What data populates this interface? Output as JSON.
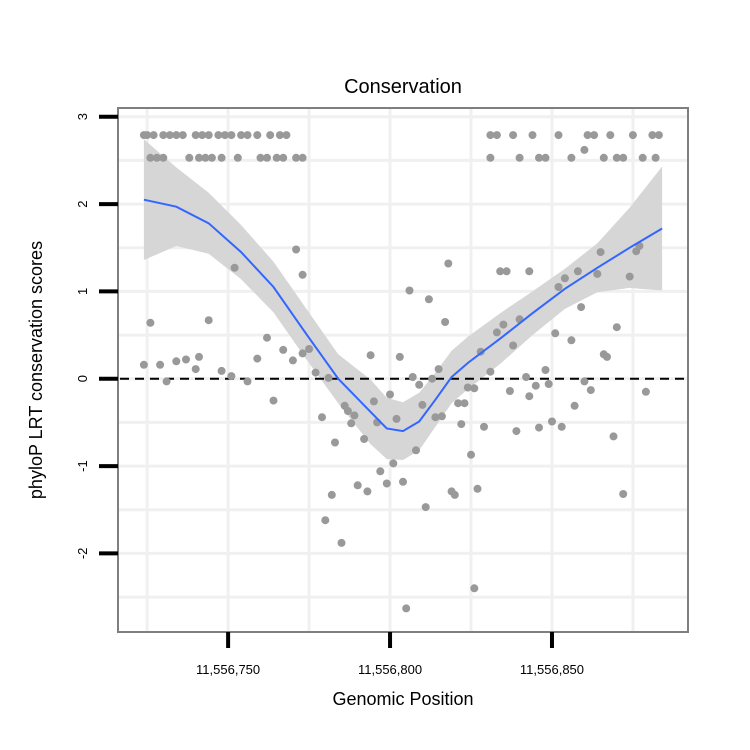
{
  "chart_data": {
    "type": "scatter",
    "title": "Conservation",
    "xlabel": "Genomic Position",
    "ylabel": "phyloP LRT conservation scores",
    "xlim": [
      11556716,
      11556892
    ],
    "ylim": [
      -2.9,
      3.1
    ],
    "x_ticks": [
      {
        "value": 11556750,
        "label": "11,556,750"
      },
      {
        "value": 11556800,
        "label": "11,556,800"
      },
      {
        "value": 11556850,
        "label": "11,556,850"
      }
    ],
    "y_ticks": [
      {
        "value": -2,
        "label": "-2"
      },
      {
        "value": -1,
        "label": "-1"
      },
      {
        "value": 0,
        "label": "0"
      },
      {
        "value": 1,
        "label": "1"
      },
      {
        "value": 2,
        "label": "2"
      },
      {
        "value": 3,
        "label": "3"
      }
    ],
    "reference_line": {
      "y": 0,
      "style": "dashed",
      "color": "#000000"
    },
    "colors": {
      "points": "#999999",
      "smooth": "#3366ff",
      "ribbon": "#d6d6d6",
      "panel_border": "#7f7f7f",
      "grid": "#f0f0f0"
    },
    "points": [
      [
        11556724,
        2.79
      ],
      [
        11556725,
        2.79
      ],
      [
        11556727,
        2.79
      ],
      [
        11556730,
        2.79
      ],
      [
        11556732,
        2.79
      ],
      [
        11556734,
        2.79
      ],
      [
        11556736,
        2.79
      ],
      [
        11556740,
        2.79
      ],
      [
        11556742,
        2.79
      ],
      [
        11556744,
        2.79
      ],
      [
        11556747,
        2.79
      ],
      [
        11556749,
        2.79
      ],
      [
        11556751,
        2.79
      ],
      [
        11556754,
        2.79
      ],
      [
        11556756,
        2.79
      ],
      [
        11556759,
        2.79
      ],
      [
        11556763,
        2.79
      ],
      [
        11556766,
        2.79
      ],
      [
        11556768,
        2.79
      ],
      [
        11556831,
        2.79
      ],
      [
        11556833,
        2.79
      ],
      [
        11556838,
        2.79
      ],
      [
        11556844,
        2.79
      ],
      [
        11556852,
        2.79
      ],
      [
        11556861,
        2.79
      ],
      [
        11556863,
        2.79
      ],
      [
        11556868,
        2.79
      ],
      [
        11556875,
        2.79
      ],
      [
        11556881,
        2.79
      ],
      [
        11556883,
        2.79
      ],
      [
        11556726,
        2.53
      ],
      [
        11556728,
        2.53
      ],
      [
        11556730,
        2.53
      ],
      [
        11556738,
        2.53
      ],
      [
        11556741,
        2.53
      ],
      [
        11556743,
        2.53
      ],
      [
        11556745,
        2.53
      ],
      [
        11556748,
        2.53
      ],
      [
        11556753,
        2.53
      ],
      [
        11556760,
        2.53
      ],
      [
        11556762,
        2.53
      ],
      [
        11556765,
        2.53
      ],
      [
        11556767,
        2.53
      ],
      [
        11556771,
        2.53
      ],
      [
        11556773,
        2.53
      ],
      [
        11556831,
        2.53
      ],
      [
        11556840,
        2.53
      ],
      [
        11556846,
        2.53
      ],
      [
        11556848,
        2.53
      ],
      [
        11556856,
        2.53
      ],
      [
        11556866,
        2.53
      ],
      [
        11556870,
        2.53
      ],
      [
        11556872,
        2.53
      ],
      [
        11556878,
        2.53
      ],
      [
        11556882,
        2.53
      ],
      [
        11556860,
        2.62
      ],
      [
        11556724,
        0.16
      ],
      [
        11556726,
        0.64
      ],
      [
        11556729,
        0.16
      ],
      [
        11556731,
        -0.03
      ],
      [
        11556734,
        0.2
      ],
      [
        11556737,
        0.22
      ],
      [
        11556740,
        0.11
      ],
      [
        11556741,
        0.25
      ],
      [
        11556744,
        0.67
      ],
      [
        11556748,
        0.09
      ],
      [
        11556751,
        0.03
      ],
      [
        11556752,
        1.27
      ],
      [
        11556756,
        -0.03
      ],
      [
        11556759,
        0.23
      ],
      [
        11556762,
        0.47
      ],
      [
        11556764,
        -0.25
      ],
      [
        11556767,
        0.33
      ],
      [
        11556770,
        0.21
      ],
      [
        11556771,
        1.48
      ],
      [
        11556773,
        0.29
      ],
      [
        11556773,
        1.19
      ],
      [
        11556775,
        0.34
      ],
      [
        11556777,
        0.07
      ],
      [
        11556779,
        -0.44
      ],
      [
        11556780,
        -1.62
      ],
      [
        11556781,
        0.01
      ],
      [
        11556782,
        -1.33
      ],
      [
        11556783,
        -0.73
      ],
      [
        11556785,
        -1.88
      ],
      [
        11556786,
        -0.31
      ],
      [
        11556787,
        -0.37
      ],
      [
        11556788,
        -0.51
      ],
      [
        11556789,
        -0.42
      ],
      [
        11556790,
        -1.22
      ],
      [
        11556792,
        -0.69
      ],
      [
        11556793,
        -1.29
      ],
      [
        11556794,
        0.27
      ],
      [
        11556795,
        -0.26
      ],
      [
        11556796,
        -0.5
      ],
      [
        11556797,
        -1.06
      ],
      [
        11556799,
        -1.2
      ],
      [
        11556800,
        -0.18
      ],
      [
        11556801,
        -0.97
      ],
      [
        11556802,
        -0.46
      ],
      [
        11556803,
        0.25
      ],
      [
        11556804,
        -1.18
      ],
      [
        11556805,
        -2.63
      ],
      [
        11556806,
        1.01
      ],
      [
        11556807,
        0.02
      ],
      [
        11556808,
        -0.82
      ],
      [
        11556809,
        -0.07
      ],
      [
        11556810,
        -0.3
      ],
      [
        11556811,
        -1.47
      ],
      [
        11556812,
        0.91
      ],
      [
        11556813,
        0.0
      ],
      [
        11556814,
        -0.44
      ],
      [
        11556815,
        0.11
      ],
      [
        11556816,
        -0.43
      ],
      [
        11556817,
        0.65
      ],
      [
        11556818,
        1.32
      ],
      [
        11556819,
        -1.29
      ],
      [
        11556820,
        -1.33
      ],
      [
        11556821,
        -0.28
      ],
      [
        11556822,
        -0.52
      ],
      [
        11556823,
        -0.28
      ],
      [
        11556824,
        -0.1
      ],
      [
        11556825,
        -0.87
      ],
      [
        11556826,
        -0.11
      ],
      [
        11556826,
        -2.4
      ],
      [
        11556827,
        -1.26
      ],
      [
        11556828,
        0.31
      ],
      [
        11556829,
        -0.55
      ],
      [
        11556831,
        0.08
      ],
      [
        11556833,
        0.53
      ],
      [
        11556834,
        1.23
      ],
      [
        11556835,
        0.62
      ],
      [
        11556836,
        1.23
      ],
      [
        11556837,
        -0.14
      ],
      [
        11556838,
        0.38
      ],
      [
        11556839,
        -0.6
      ],
      [
        11556840,
        0.68
      ],
      [
        11556842,
        0.02
      ],
      [
        11556843,
        -0.2
      ],
      [
        11556843,
        1.23
      ],
      [
        11556845,
        -0.08
      ],
      [
        11556846,
        -0.56
      ],
      [
        11556848,
        0.1
      ],
      [
        11556849,
        -0.06
      ],
      [
        11556850,
        -0.49
      ],
      [
        11556851,
        0.52
      ],
      [
        11556852,
        1.05
      ],
      [
        11556853,
        -0.55
      ],
      [
        11556854,
        1.15
      ],
      [
        11556856,
        0.44
      ],
      [
        11556857,
        -0.31
      ],
      [
        11556858,
        1.23
      ],
      [
        11556859,
        0.82
      ],
      [
        11556860,
        -0.03
      ],
      [
        11556862,
        -0.13
      ],
      [
        11556864,
        1.2
      ],
      [
        11556865,
        1.45
      ],
      [
        11556866,
        0.28
      ],
      [
        11556867,
        0.25
      ],
      [
        11556869,
        -0.66
      ],
      [
        11556870,
        0.59
      ],
      [
        11556872,
        -1.32
      ],
      [
        11556874,
        1.17
      ],
      [
        11556876,
        1.46
      ],
      [
        11556877,
        1.52
      ],
      [
        11556879,
        -0.15
      ]
    ],
    "smooth": {
      "x": [
        11556724,
        11556734,
        11556744,
        11556754,
        11556764,
        11556774,
        11556784,
        11556794,
        11556799,
        11556804,
        11556809,
        11556814,
        11556819,
        11556824,
        11556834,
        11556844,
        11556854,
        11556864,
        11556874,
        11556884
      ],
      "y": [
        2.05,
        1.97,
        1.78,
        1.45,
        1.05,
        0.52,
        0.0,
        -0.38,
        -0.57,
        -0.6,
        -0.49,
        -0.24,
        0.02,
        0.18,
        0.46,
        0.75,
        1.03,
        1.27,
        1.5,
        1.72
      ],
      "lower": [
        1.36,
        1.52,
        1.43,
        1.14,
        0.76,
        0.23,
        -0.28,
        -0.75,
        -0.92,
        -0.93,
        -0.82,
        -0.55,
        -0.28,
        -0.12,
        0.17,
        0.5,
        0.8,
        0.99,
        1.04,
        1.01
      ],
      "upper": [
        2.74,
        2.42,
        2.13,
        1.76,
        1.34,
        0.81,
        0.28,
        -0.01,
        -0.22,
        -0.27,
        -0.16,
        0.07,
        0.32,
        0.48,
        0.75,
        1.0,
        1.26,
        1.55,
        1.96,
        2.43
      ]
    }
  }
}
